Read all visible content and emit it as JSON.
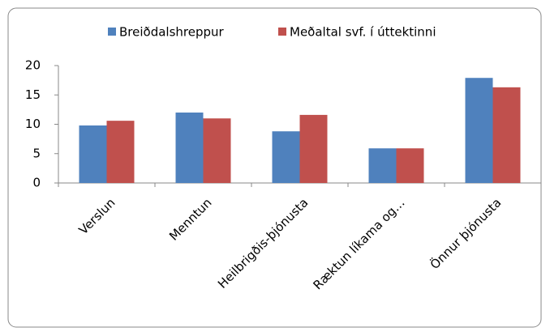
{
  "chart_data": {
    "type": "bar",
    "categories": [
      "Verslun",
      "Menntun",
      "Heilbrigðis-þjónusta",
      "Ræktun líkama og…",
      "Önnur þjónusta"
    ],
    "series": [
      {
        "name": "Breiðdalshreppur",
        "color": "#4f81bd",
        "values": [
          9.8,
          12,
          8.8,
          5.9,
          17.9
        ]
      },
      {
        "name": "Meðaltal svf. í úttektinni",
        "color": "#c0504d",
        "values": [
          10.6,
          11,
          11.6,
          5.9,
          16.3
        ]
      }
    ],
    "ylim": [
      0,
      20
    ],
    "yticks": [
      0,
      5,
      10,
      15,
      20
    ],
    "grid": false,
    "legend": "top"
  }
}
